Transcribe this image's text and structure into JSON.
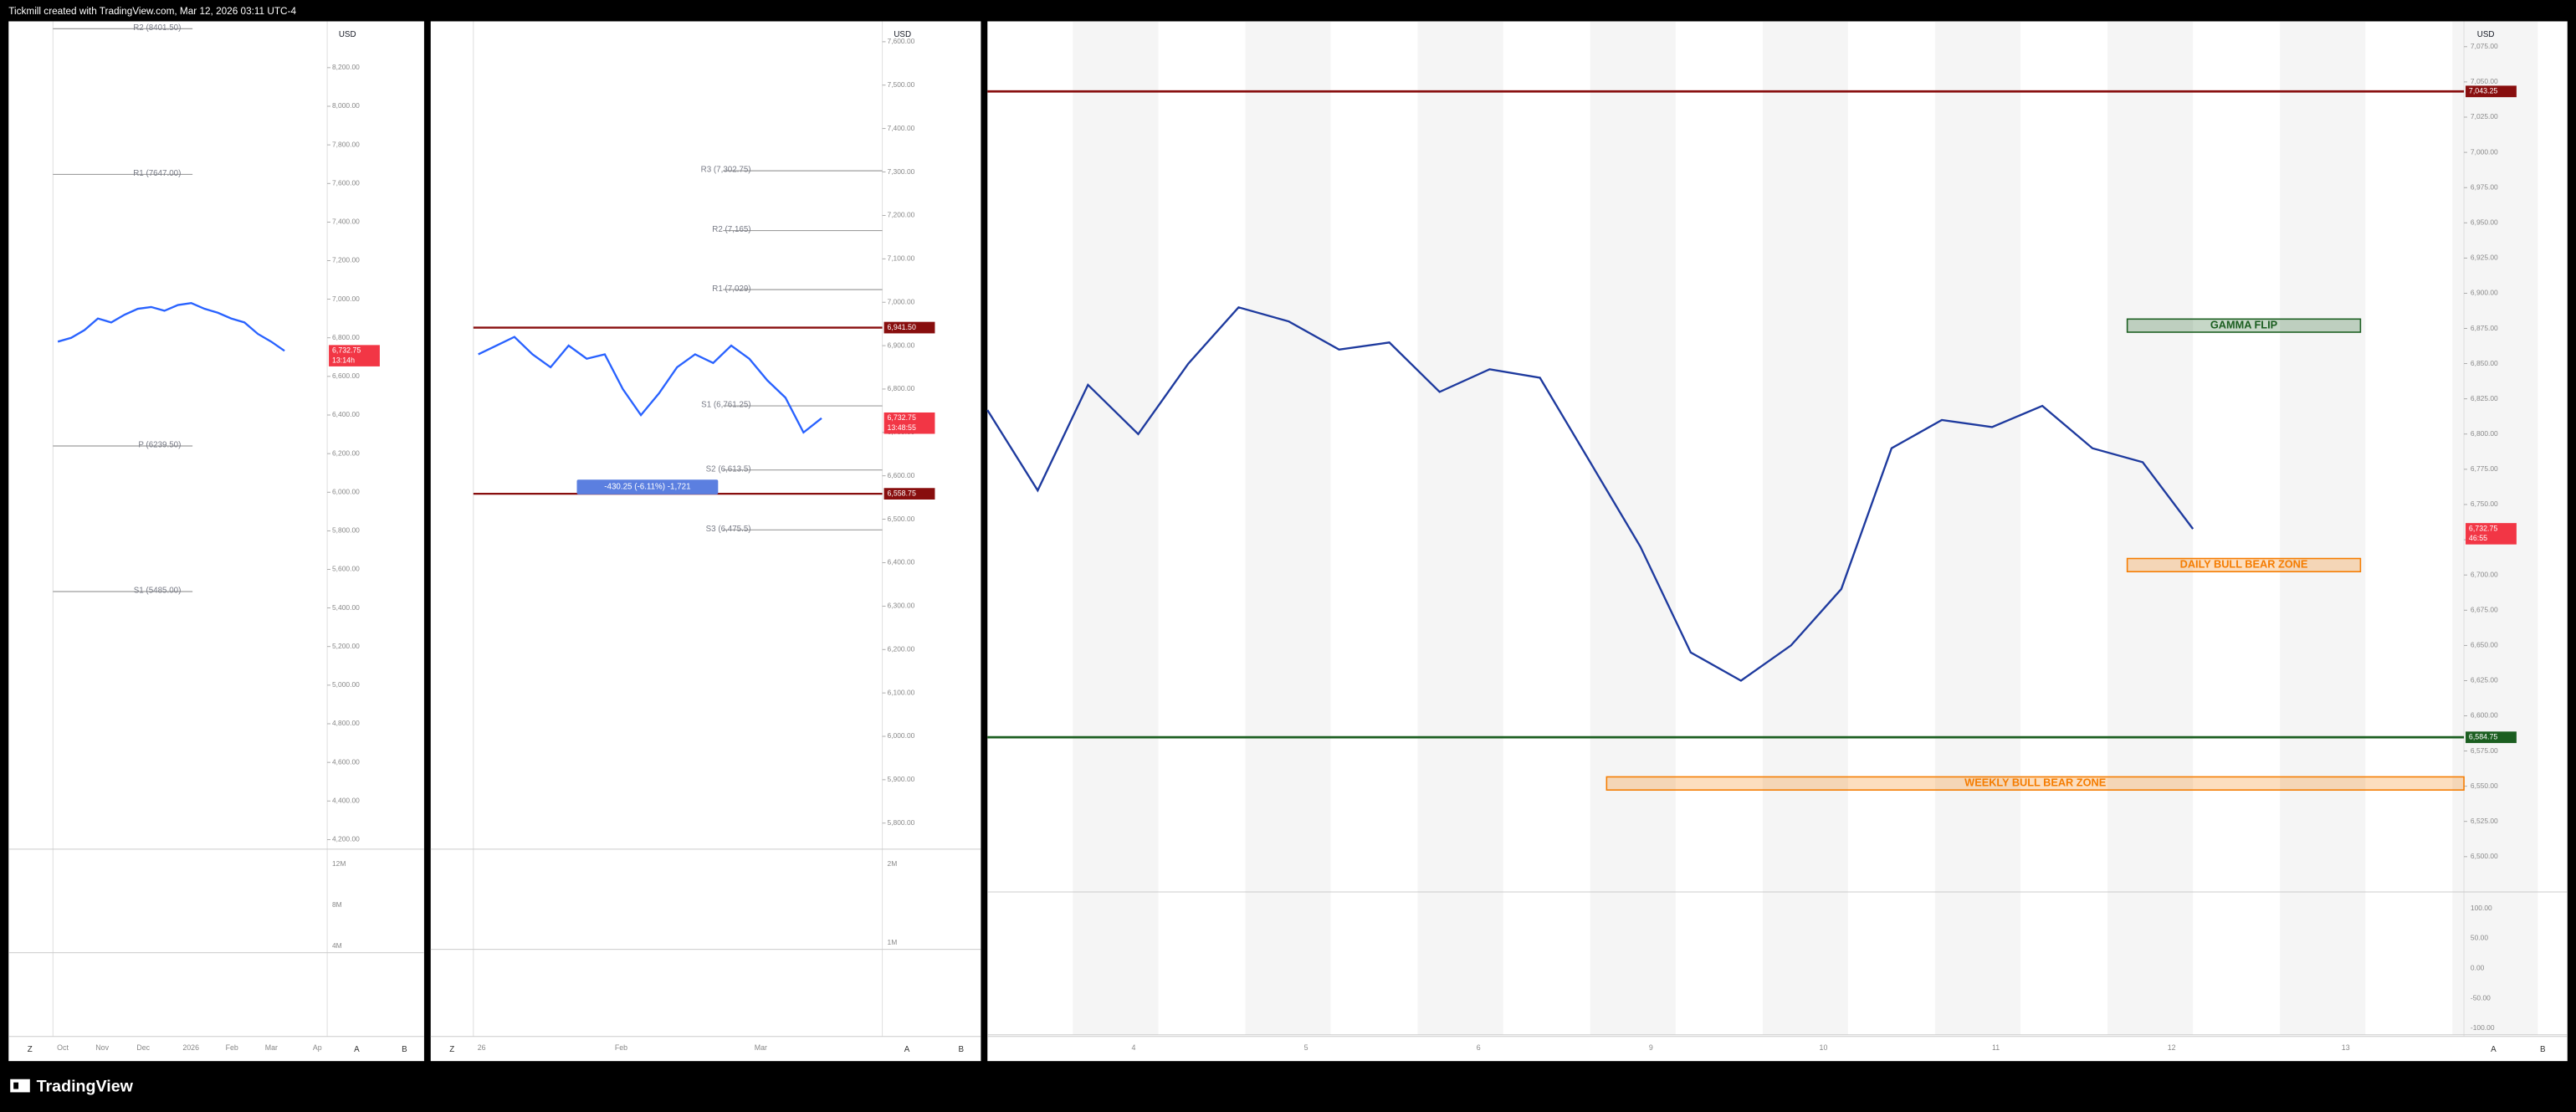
{
  "header": {
    "title": "Tickmill created with TradingView.com, Mar 12, 2026 03:11 UTC-4"
  },
  "footer": {
    "brand": "TradingView"
  },
  "panels": [
    {
      "currency": "USD",
      "ylim": [
        4150,
        8440
      ],
      "yticks": [
        {
          "value": 4200,
          "label": "4,200.00"
        },
        {
          "value": 4400,
          "label": "4,400.00"
        },
        {
          "value": 4600,
          "label": "4,600.00"
        },
        {
          "value": 4800,
          "label": "4,800.00"
        },
        {
          "value": 5000,
          "label": "5,000.00"
        },
        {
          "value": 5200,
          "label": "5,200.00"
        },
        {
          "value": 5400,
          "label": "5,400.00"
        },
        {
          "value": 5600,
          "label": "5,600.00"
        },
        {
          "value": 5800,
          "label": "5,800.00"
        },
        {
          "value": 6000,
          "label": "6,000.00"
        },
        {
          "value": 6200,
          "label": "6,200.00"
        },
        {
          "value": 6400,
          "label": "6,400.00"
        },
        {
          "value": 6600,
          "label": "6,600.00"
        },
        {
          "value": 6800,
          "label": "6,800.00"
        },
        {
          "value": 7000,
          "label": "7,000.00"
        },
        {
          "value": 7200,
          "label": "7,200.00"
        },
        {
          "value": 7400,
          "label": "7,400.00"
        },
        {
          "value": 7600,
          "label": "7,600.00"
        },
        {
          "value": 7800,
          "label": "7,800.00"
        },
        {
          "value": 8000,
          "label": "8,000.00"
        },
        {
          "value": 8200,
          "label": "8,200.00"
        }
      ],
      "xlabels": [
        "Oct",
        "Nov",
        "Dec",
        "2026",
        "Feb",
        "Mar",
        "Ap"
      ],
      "levels": [
        {
          "label": "R2 (8401.50)",
          "value": 8401.5
        },
        {
          "label": "R1 (7647.00)",
          "value": 7647
        },
        {
          "label": "P (6239.50)",
          "value": 6239.5
        },
        {
          "label": "S1 (5485.00)",
          "value": 5485
        }
      ],
      "price_tags": [
        {
          "value": 6732.75,
          "label": "6,732.75",
          "timer": "13:14h",
          "color": "#f23645"
        }
      ],
      "close": {
        "color": "#2962ff",
        "values": [
          6780,
          6800,
          6840,
          6900,
          6880,
          6920,
          6950,
          6960,
          6940,
          6970,
          6980,
          6950,
          6930,
          6900,
          6880,
          6820,
          6780,
          6732.75
        ]
      },
      "sub_labels": [
        "12M",
        "8M",
        "4M"
      ],
      "toolbar": [
        "Z",
        "A",
        "B"
      ]
    },
    {
      "currency": "USD",
      "ylim": [
        5740,
        7647
      ],
      "yticks": [
        {
          "value": 5800,
          "label": "5,800.00"
        },
        {
          "value": 5900,
          "label": "5,900.00"
        },
        {
          "value": 6000,
          "label": "6,000.00"
        },
        {
          "value": 6100,
          "label": "6,100.00"
        },
        {
          "value": 6200,
          "label": "6,200.00"
        },
        {
          "value": 6300,
          "label": "6,300.00"
        },
        {
          "value": 6400,
          "label": "6,400.00"
        },
        {
          "value": 6500,
          "label": "6,500.00"
        },
        {
          "value": 6600,
          "label": "6,600.00"
        },
        {
          "value": 6700,
          "label": "6,700.00"
        },
        {
          "value": 6800,
          "label": "6,800.00"
        },
        {
          "value": 6900,
          "label": "6,900.00"
        },
        {
          "value": 7000,
          "label": "7,000.00"
        },
        {
          "value": 7100,
          "label": "7,100.00"
        },
        {
          "value": 7200,
          "label": "7,200.00"
        },
        {
          "value": 7300,
          "label": "7,300.00"
        },
        {
          "value": 7400,
          "label": "7,400.00"
        },
        {
          "value": 7500,
          "label": "7,500.00"
        },
        {
          "value": 7600,
          "label": "7,600.00"
        }
      ],
      "xlabels": [
        "26",
        "Feb",
        "Mar"
      ],
      "levels": [
        {
          "label": "R3 (7,302.75)",
          "value": 7302.75
        },
        {
          "label": "R2 (7,165)",
          "value": 7165
        },
        {
          "label": "R1 (7,029)",
          "value": 7029
        },
        {
          "label": "S1 (6,761.25)",
          "value": 6761.25
        },
        {
          "label": "S2 (6,613.5)",
          "value": 6613.5
        },
        {
          "label": "S3 (6,475.5)",
          "value": 6475.5
        }
      ],
      "price_tags": [
        {
          "value": 6941.5,
          "label": "6,941.50",
          "color": "#880e0e"
        },
        {
          "value": 6732.75,
          "label": "6,732.75",
          "timer": "13:48:55",
          "color": "#f23645"
        },
        {
          "value": 6558.75,
          "label": "6,558.75",
          "color": "#880e0e"
        }
      ],
      "measure": "-430.25 (-6.11%) -1,721",
      "close": {
        "color": "#2962ff",
        "values": [
          6880,
          6900,
          6920,
          6880,
          6850,
          6900,
          6870,
          6880,
          6800,
          6740,
          6790,
          6850,
          6880,
          6860,
          6900,
          6870,
          6820,
          6780,
          6700,
          6732.75
        ]
      },
      "sub_labels": [
        "2M",
        "1M"
      ],
      "toolbar": [
        "Z",
        "A",
        "B"
      ]
    },
    {
      "currency": "USD",
      "ylim": [
        6475,
        7093
      ],
      "yticks": [
        {
          "value": 6500,
          "label": "6,500.00"
        },
        {
          "value": 6525,
          "label": "6,525.00"
        },
        {
          "value": 6550,
          "label": "6,550.00"
        },
        {
          "value": 6575,
          "label": "6,575.00"
        },
        {
          "value": 6600,
          "label": "6,600.00"
        },
        {
          "value": 6625,
          "label": "6,625.00"
        },
        {
          "value": 6650,
          "label": "6,650.00"
        },
        {
          "value": 6675,
          "label": "6,675.00"
        },
        {
          "value": 6700,
          "label": "6,700.00"
        },
        {
          "value": 6725,
          "label": "6,725.00"
        },
        {
          "value": 6750,
          "label": "6,750.00"
        },
        {
          "value": 6775,
          "label": "6,775.00"
        },
        {
          "value": 6800,
          "label": "6,800.00"
        },
        {
          "value": 6825,
          "label": "6,825.00"
        },
        {
          "value": 6850,
          "label": "6,850.00"
        },
        {
          "value": 6875,
          "label": "6,875.00"
        },
        {
          "value": 6900,
          "label": "6,900.00"
        },
        {
          "value": 6925,
          "label": "6,925.00"
        },
        {
          "value": 6950,
          "label": "6,950.00"
        },
        {
          "value": 6975,
          "label": "6,975.00"
        },
        {
          "value": 7000,
          "label": "7,000.00"
        },
        {
          "value": 7025,
          "label": "7,025.00"
        },
        {
          "value": 7050,
          "label": "7,050.00"
        },
        {
          "value": 7075,
          "label": "7,075.00"
        }
      ],
      "xlabels": [
        "4",
        "5",
        "6",
        "9",
        "10",
        "11",
        "12",
        "13"
      ],
      "levels": [],
      "price_tags": [
        {
          "value": 7043.25,
          "label": "7,043.25",
          "color": "#880e0e"
        },
        {
          "value": 6732.75,
          "label": "6,732.75",
          "timer": "46:55",
          "color": "#f23645"
        },
        {
          "value": 6584.75,
          "label": "6,584.75",
          "color": "#1b5e20"
        }
      ],
      "zones": [
        {
          "text": "GAMMA FLIP",
          "value": 6877,
          "color": "#1b5e20"
        },
        {
          "text": "DAILY BULL BEAR ZONE",
          "value": 6707,
          "color": "#f57c00"
        },
        {
          "text": "WEEKLY BULL BEAR ZONE",
          "value": 6552,
          "color": "#f57c00"
        }
      ],
      "close": {
        "color": "#1e3a9e",
        "values": [
          6817,
          6760,
          6835,
          6800,
          6850,
          6890,
          6880,
          6860,
          6865,
          6830,
          6846,
          6840,
          6780,
          6720,
          6645,
          6625,
          6650,
          6690,
          6790,
          6810,
          6805,
          6820,
          6790,
          6780,
          6732.75
        ]
      },
      "sub_labels": [
        "100.00",
        "50.00",
        "0.00",
        "-50.00",
        "-100.00"
      ],
      "toolbar": [
        "A",
        "B"
      ]
    }
  ]
}
